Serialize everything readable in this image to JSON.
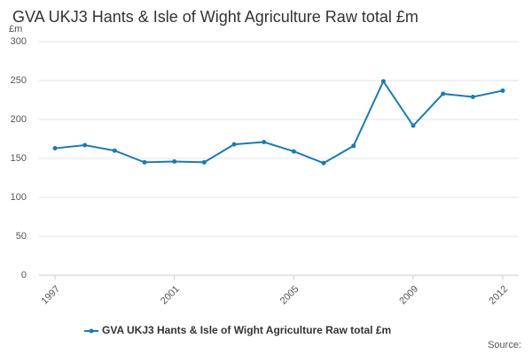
{
  "chart_data": {
    "type": "line",
    "title": "GVA UKJ3 Hants & Isle of Wight Agriculture Raw total £m",
    "y_label": "£m",
    "source": "Source:",
    "x": [
      1997,
      1998,
      1999,
      2000,
      2001,
      2002,
      2003,
      2004,
      2005,
      2006,
      2007,
      2008,
      2009,
      2010,
      2011,
      2012
    ],
    "series": [
      {
        "name": "GVA UKJ3 Hants & Isle of Wight Agriculture Raw total £m",
        "color": "#1a7ab5",
        "values": [
          163,
          167,
          160,
          145,
          146,
          145,
          168,
          171,
          159,
          144,
          166,
          249,
          192,
          233,
          229,
          237
        ]
      }
    ],
    "xlim": [
      1997,
      2012
    ],
    "xticks": [
      1997,
      2001,
      2005,
      2009,
      2012
    ],
    "ylim": [
      0,
      300
    ],
    "yticks": [
      0,
      50,
      100,
      150,
      200,
      250,
      300
    ],
    "grid": true,
    "legend": "bottom"
  }
}
